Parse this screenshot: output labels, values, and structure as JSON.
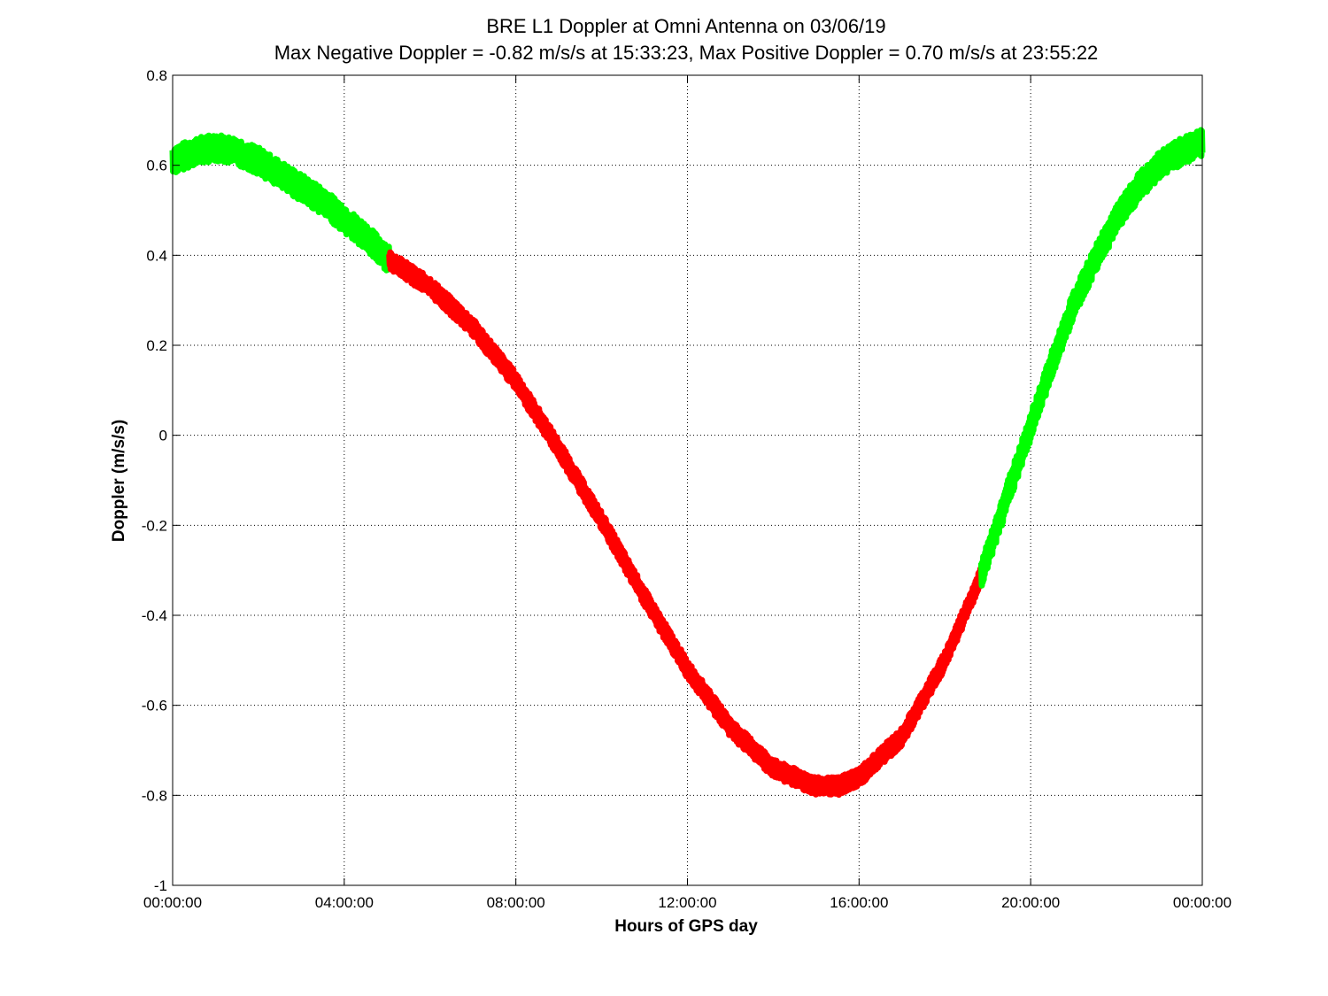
{
  "chart_data": {
    "type": "line",
    "title": "BRE  L1 Doppler at Omni Antenna on 03/06/19",
    "subtitle": "Max Negative Doppler = -0.82 m/s/s  at 15:33:23,   Max Positive Doppler = 0.70 m/s/s  at 23:55:22",
    "xlabel": "Hours of GPS day",
    "ylabel": "Doppler (m/s/s)",
    "xlim": [
      0,
      24
    ],
    "ylim": [
      -1,
      0.8
    ],
    "grid": true,
    "x_ticks": [
      {
        "value": 0,
        "label": "00:00:00"
      },
      {
        "value": 4,
        "label": "04:00:00"
      },
      {
        "value": 8,
        "label": "08:00:00"
      },
      {
        "value": 12,
        "label": "12:00:00"
      },
      {
        "value": 16,
        "label": "16:00:00"
      },
      {
        "value": 20,
        "label": "20:00:00"
      },
      {
        "value": 24,
        "label": "00:00:00"
      }
    ],
    "y_ticks": [
      {
        "value": 0.8,
        "label": "0.8"
      },
      {
        "value": 0.6,
        "label": "0.6"
      },
      {
        "value": 0.4,
        "label": "0.4"
      },
      {
        "value": 0.2,
        "label": "0.2"
      },
      {
        "value": 0,
        "label": "0"
      },
      {
        "value": -0.2,
        "label": "-0.2"
      },
      {
        "value": -0.4,
        "label": "-0.4"
      },
      {
        "value": -0.6,
        "label": "-0.6"
      },
      {
        "value": -0.8,
        "label": "-0.8"
      },
      {
        "value": -1,
        "label": "-1"
      }
    ],
    "series": [
      {
        "color": "#00ff00",
        "band_width": 0.06,
        "x": [
          0,
          0.5,
          1,
          1.5,
          2,
          2.5,
          3,
          3.5,
          4,
          4.5,
          5.05
        ],
        "y": [
          0.61,
          0.63,
          0.64,
          0.63,
          0.61,
          0.58,
          0.55,
          0.52,
          0.48,
          0.44,
          0.39
        ]
      },
      {
        "color": "#ff0000",
        "band_width": 0.04,
        "x": [
          5.05,
          6,
          7,
          8,
          9,
          10,
          11,
          12,
          13,
          14,
          15,
          15.5,
          16,
          17,
          18,
          18.85
        ],
        "y": [
          0.39,
          0.33,
          0.24,
          0.12,
          -0.03,
          -0.19,
          -0.36,
          -0.52,
          -0.65,
          -0.74,
          -0.78,
          -0.78,
          -0.76,
          -0.67,
          -0.5,
          -0.31
        ]
      },
      {
        "color": "#00ff00",
        "band_width": 0.06,
        "x": [
          18.85,
          19.5,
          20,
          20.5,
          21,
          21.5,
          22,
          22.5,
          23,
          23.5,
          24
        ],
        "y": [
          -0.31,
          -0.12,
          0.02,
          0.16,
          0.29,
          0.39,
          0.48,
          0.55,
          0.6,
          0.63,
          0.65
        ]
      }
    ]
  }
}
